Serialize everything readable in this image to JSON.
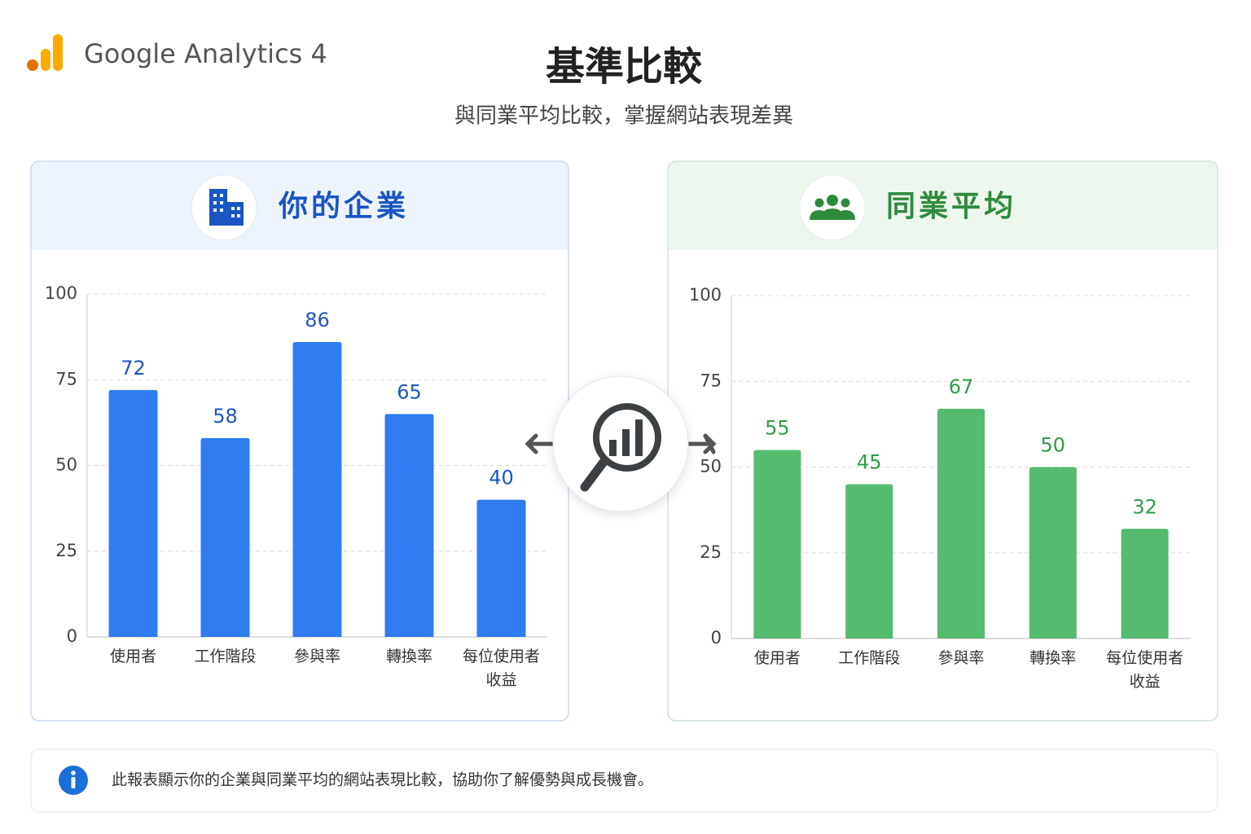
{
  "header": {
    "brand": "Google Analytics 4",
    "title": "基準比較",
    "subtitle": "與同業平均比較，掌握網站表現差異"
  },
  "chart_data": [
    {
      "type": "bar",
      "title": "你的企業",
      "categories": [
        "使用者",
        "工作階段",
        "參與率",
        "轉換率",
        "每位使用者收益"
      ],
      "values": [
        72,
        58,
        86,
        65,
        40
      ],
      "color": "#2f7cf0",
      "label_color": "#1a56c4",
      "ylim": [
        0,
        100
      ],
      "yticks": [
        0,
        25,
        50,
        75,
        100
      ],
      "grid": true
    },
    {
      "type": "bar",
      "title": "同業平均",
      "categories": [
        "使用者",
        "工作階段",
        "參與率",
        "轉換率",
        "每位使用者收益"
      ],
      "values": [
        55,
        45,
        67,
        50,
        32
      ],
      "color": "#55bb6e",
      "label_color": "#2e9e48",
      "ylim": [
        0,
        100
      ],
      "yticks": [
        0,
        25,
        50,
        75,
        100
      ],
      "grid": true
    }
  ],
  "footer": {
    "note": "此報表顯示你的企業與同業平均的網站表現比較，協助你了解優勢與成長機會。"
  }
}
